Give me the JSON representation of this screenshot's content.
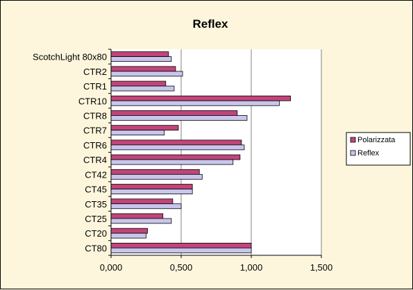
{
  "colors": {
    "background": "#fdf6dc",
    "plot_area": "#ffffff",
    "polarizzata": "#c2457a",
    "reflex": "#c8c6ec",
    "axis": "#808080"
  },
  "chart_data": {
    "type": "bar",
    "orientation": "horizontal",
    "title": "Reflex",
    "xlabel": "",
    "ylabel": "",
    "xlim": [
      0,
      1.5
    ],
    "x_ticks": [
      "0,000",
      "0,500",
      "1,000",
      "1,500"
    ],
    "x_tick_values": [
      0,
      0.5,
      1.0,
      1.5
    ],
    "grid": "vertical major gridlines",
    "legend_position": "right",
    "categories": [
      "ScotchLight 80x80",
      "CTR2",
      "CTR1",
      "CTR10",
      "CTR8",
      "CTR7",
      "CTR6",
      "CTR4",
      "CT42",
      "CT45",
      "CT35",
      "CT25",
      "CT20",
      "CT80"
    ],
    "series": [
      {
        "name": "Polarizzata",
        "color": "#c2457a",
        "values": [
          0.41,
          0.46,
          0.39,
          1.28,
          0.9,
          0.48,
          0.93,
          0.92,
          0.63,
          0.58,
          0.44,
          0.37,
          0.26,
          1.0
        ]
      },
      {
        "name": "Reflex",
        "color": "#c8c6ec",
        "values": [
          0.43,
          0.51,
          0.45,
          1.2,
          0.97,
          0.38,
          0.95,
          0.87,
          0.65,
          0.58,
          0.5,
          0.43,
          0.25,
          1.0
        ]
      }
    ]
  }
}
